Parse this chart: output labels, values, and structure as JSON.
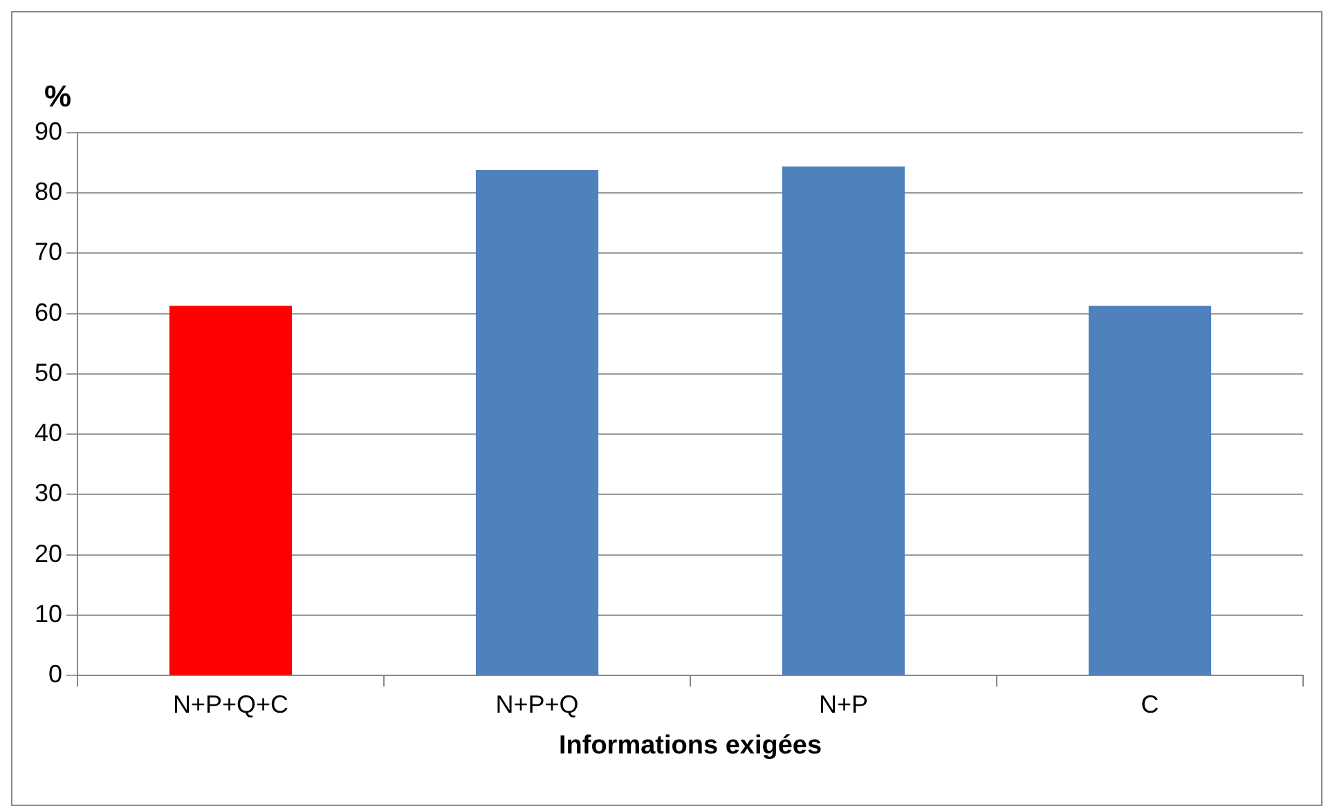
{
  "chart_data": {
    "type": "bar",
    "ylabel": "%",
    "xlabel": "Informations exigées",
    "categories": [
      "N+P+Q+C",
      "N+P+Q",
      "N+P",
      "C"
    ],
    "values": [
      61.3,
      83.8,
      84.4,
      61.3
    ],
    "colors": [
      "#ff0000",
      "#4f81bd",
      "#4f81bd",
      "#4f81bd"
    ],
    "ylim": [
      0,
      90
    ],
    "yticks": [
      0,
      10,
      20,
      30,
      40,
      50,
      60,
      70,
      80,
      90
    ],
    "grid": "y",
    "legend": false
  }
}
